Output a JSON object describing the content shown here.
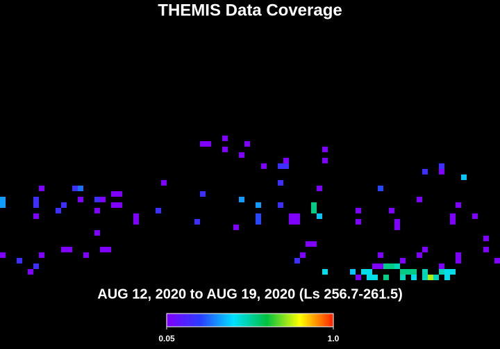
{
  "chart_data": {
    "type": "coverage-map",
    "title": "THEMIS Data Coverage",
    "subtitle": "AUG 12, 2020 to AUG 19, 2020 (Ls 256.7-261.5)",
    "colormap": [
      "#8000ff",
      "#2a3cff",
      "#00e0ff",
      "#00c040",
      "#ffff00",
      "#ff2000"
    ],
    "clim": [
      0.05,
      1
    ],
    "cticks": [
      {
        "value": 0.05,
        "label": "0.05"
      },
      {
        "value": 1,
        "label": "1.0"
      }
    ],
    "x": [
      36,
      37,
      40,
      40,
      44,
      43,
      47,
      50,
      51,
      51,
      58,
      58,
      79,
      79,
      76,
      83,
      50,
      57,
      68,
      29,
      36,
      14,
      13,
      7,
      6,
      6,
      0,
      0,
      11,
      10,
      14,
      17,
      18,
      20,
      21,
      20,
      21,
      17,
      6,
      24,
      24,
      28,
      35,
      43,
      46,
      46,
      46,
      50,
      52,
      53,
      52,
      53,
      56,
      56,
      57,
      64,
      64,
      70,
      71,
      71,
      75,
      82,
      81,
      81,
      85,
      42,
      17,
      12,
      11,
      19,
      18,
      15,
      55,
      56,
      87,
      87,
      0,
      3,
      7,
      6,
      5,
      53,
      54,
      68,
      72,
      75,
      76,
      82,
      82,
      89,
      67,
      68,
      69,
      70,
      71,
      79,
      58,
      63,
      65,
      66,
      72,
      73,
      74,
      76,
      79,
      80,
      81,
      64,
      66,
      67,
      69,
      72,
      74,
      76,
      77,
      78,
      80
    ],
    "y": [
      1,
      1,
      0,
      2,
      1,
      3,
      5,
      5,
      5,
      4,
      2,
      4,
      5,
      6,
      6,
      7,
      8,
      9,
      9,
      8,
      10,
      9,
      9,
      9,
      11,
      12,
      11,
      12,
      12,
      13,
      11,
      11,
      11,
      10,
      10,
      12,
      12,
      13,
      14,
      14,
      15,
      13,
      15,
      11,
      12,
      14,
      15,
      12,
      14,
      14,
      15,
      15,
      12,
      13,
      14,
      13,
      15,
      13,
      15,
      16,
      11,
      12,
      14,
      15,
      14,
      16,
      17,
      20,
      20,
      20,
      20,
      21,
      19,
      19,
      18,
      20,
      21,
      22,
      21,
      23,
      24,
      22,
      21,
      21,
      22,
      21,
      20,
      21,
      22,
      22,
      23,
      23,
      23,
      23,
      23,
      23,
      24,
      24,
      24,
      24,
      24,
      24,
      24,
      24,
      24,
      24,
      24,
      25,
      25,
      25,
      25,
      25,
      25,
      25,
      25,
      25,
      25
    ],
    "values": [
      0.05,
      0.05,
      0.05,
      0.05,
      0.05,
      0.05,
      0.05,
      0.2,
      0.2,
      0.05,
      0.05,
      0.05,
      0.2,
      0.05,
      0.2,
      0.4,
      0.2,
      0.05,
      0.25,
      0.05,
      0.2,
      0.3,
      0.2,
      0.05,
      0.2,
      0.2,
      0.35,
      0.35,
      0.2,
      0.2,
      0.05,
      0.2,
      0.05,
      0.05,
      0.05,
      0.05,
      0.05,
      0.05,
      0.05,
      0.05,
      0.05,
      0.2,
      0.2,
      0.35,
      0.35,
      0.25,
      0.25,
      0.2,
      0.05,
      0.05,
      0.05,
      0.05,
      0.55,
      0.55,
      0.4,
      0.05,
      0.05,
      0.05,
      0.05,
      0.05,
      0.05,
      0.05,
      0.05,
      0.05,
      0.05,
      0.05,
      0.05,
      0.05,
      0.05,
      0.05,
      0.05,
      0.05,
      0.05,
      0.05,
      0.05,
      0.05,
      0.05,
      0.2,
      0.05,
      0.2,
      0.05,
      0.2,
      0.05,
      0.05,
      0.05,
      0.05,
      0.05,
      0.05,
      0.05,
      0.05,
      0.05,
      0.05,
      0.55,
      0.55,
      0.5,
      0.05,
      0.45,
      0.4,
      0.45,
      0.45,
      0.55,
      0.55,
      0.55,
      0.5,
      0.5,
      0.45,
      0.45,
      0.05,
      0.45,
      0.45,
      0.55,
      0.5,
      0.45,
      0.5,
      0.75,
      0.5,
      0.45
    ]
  }
}
